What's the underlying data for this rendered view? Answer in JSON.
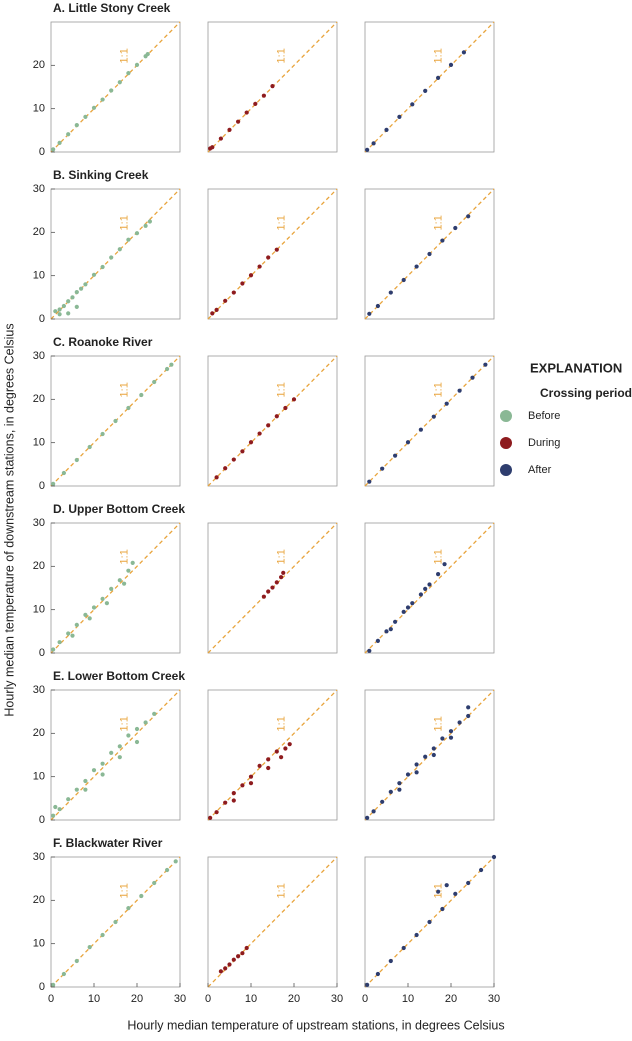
{
  "xlabel": "Hourly median temperature of upstream stations, in degrees Celsius",
  "ylabel": "Hourly median temperature of downstream stations, in degrees Celsius",
  "legend_title": "EXPLANATION",
  "legend_subtitle": "Crossing period",
  "chart_data": [
    {
      "type": "scatter",
      "title": "A. Little Stony Creek",
      "annotation": "1:1",
      "xlim": [
        0,
        30
      ],
      "ylim": [
        0,
        30
      ],
      "yticks": [
        0,
        10,
        20
      ],
      "series": [
        {
          "name": "Before",
          "color": "#8ab895",
          "x": [
            0.5,
            2,
            4,
            6,
            8,
            10,
            12,
            14,
            16,
            18,
            20,
            22,
            22.5
          ],
          "values": [
            0.6,
            2.1,
            4.1,
            6.2,
            8.1,
            10.2,
            12.1,
            14.2,
            16.1,
            18.2,
            20.1,
            22.1,
            22.6
          ]
        }
      ]
    },
    {
      "type": "scatter",
      "annotation": "1:1",
      "xlim": [
        0,
        30
      ],
      "ylim": [
        0,
        30
      ],
      "series": [
        {
          "name": "During",
          "color": "#8e1b1e",
          "x": [
            0.5,
            1,
            3,
            5,
            7,
            9,
            11,
            13,
            15
          ],
          "values": [
            0.8,
            1.1,
            3.1,
            5.1,
            7,
            9.1,
            11.1,
            13,
            15.2
          ]
        }
      ]
    },
    {
      "type": "scatter",
      "annotation": "1:1",
      "xlim": [
        0,
        30
      ],
      "ylim": [
        0,
        30
      ],
      "series": [
        {
          "name": "After",
          "color": "#2e3d6e",
          "x": [
            0.5,
            2,
            5,
            8,
            11,
            14,
            17,
            20,
            23
          ],
          "values": [
            0.5,
            2,
            5.1,
            8.1,
            11,
            14.1,
            17.1,
            20.1,
            23
          ]
        }
      ]
    },
    {
      "type": "scatter",
      "title": "B. Sinking Creek",
      "annotation": "1:1",
      "xlim": [
        0,
        30
      ],
      "ylim": [
        0,
        30
      ],
      "yticks": [
        0,
        10,
        20,
        30
      ],
      "series": [
        {
          "color": "#8ab895",
          "x": [
            1,
            2,
            3,
            4,
            5,
            6,
            7,
            8,
            10,
            12,
            14,
            16,
            18,
            20,
            22,
            23,
            2,
            4,
            6
          ],
          "values": [
            1.8,
            2.2,
            3,
            4.1,
            5,
            6.2,
            7,
            8,
            10.2,
            12,
            14.2,
            16.1,
            18.3,
            19.8,
            21.5,
            22.5,
            1.1,
            1.3,
            2.8
          ]
        }
      ]
    },
    {
      "type": "scatter",
      "annotation": "1:1",
      "xlim": [
        0,
        30
      ],
      "ylim": [
        0,
        30
      ],
      "series": [
        {
          "color": "#8e1b1e",
          "x": [
            1,
            2,
            4,
            6,
            8,
            10,
            12,
            14,
            16
          ],
          "values": [
            1.3,
            2.1,
            4.2,
            6.1,
            8.2,
            10.1,
            12.1,
            14.2,
            16
          ]
        }
      ]
    },
    {
      "type": "scatter",
      "annotation": "1:1",
      "xlim": [
        0,
        30
      ],
      "ylim": [
        0,
        30
      ],
      "series": [
        {
          "color": "#2e3d6e",
          "x": [
            1,
            3,
            6,
            9,
            12,
            15,
            18,
            21,
            24
          ],
          "values": [
            1.2,
            3,
            6.1,
            9,
            12.1,
            15,
            18.1,
            21,
            23.7
          ]
        }
      ]
    },
    {
      "type": "scatter",
      "title": "C. Roanoke River",
      "annotation": "1:1",
      "xlim": [
        0,
        30
      ],
      "ylim": [
        0,
        30
      ],
      "yticks": [
        0,
        10,
        20,
        30
      ],
      "series": [
        {
          "color": "#8ab895",
          "x": [
            0.5,
            3,
            6,
            9,
            12,
            15,
            18,
            21,
            24,
            27,
            28
          ],
          "values": [
            0.5,
            3,
            6,
            9,
            12,
            15,
            18,
            21,
            24,
            27,
            28
          ]
        }
      ]
    },
    {
      "type": "scatter",
      "annotation": "1:1",
      "xlim": [
        0,
        30
      ],
      "ylim": [
        0,
        30
      ],
      "series": [
        {
          "color": "#8e1b1e",
          "x": [
            2,
            4,
            6,
            8,
            10,
            12,
            14,
            16,
            18,
            20
          ],
          "values": [
            2,
            4.1,
            6.1,
            8,
            10.1,
            12.1,
            14,
            16.1,
            18,
            20
          ]
        }
      ]
    },
    {
      "type": "scatter",
      "annotation": "1:1",
      "xlim": [
        0,
        30
      ],
      "ylim": [
        0,
        30
      ],
      "series": [
        {
          "color": "#2e3d6e",
          "x": [
            1,
            4,
            7,
            10,
            13,
            16,
            19,
            22,
            25,
            28
          ],
          "values": [
            1,
            4,
            7,
            10.1,
            13,
            16,
            19,
            22,
            25,
            28
          ]
        }
      ]
    },
    {
      "type": "scatter",
      "title": "D. Upper Bottom Creek",
      "annotation": "1:1",
      "xlim": [
        0,
        30
      ],
      "ylim": [
        0,
        30
      ],
      "yticks": [
        0,
        10,
        20,
        30
      ],
      "series": [
        {
          "color": "#8ab895",
          "x": [
            0.5,
            2,
            4,
            6,
            8,
            10,
            12,
            14,
            16,
            18,
            19,
            5,
            9,
            13,
            17
          ],
          "values": [
            0.8,
            2.5,
            4.5,
            6.5,
            8.8,
            10.5,
            12.5,
            14.8,
            16.8,
            19,
            20.8,
            4,
            8,
            11.5,
            16
          ]
        }
      ]
    },
    {
      "type": "scatter",
      "annotation": "1:1",
      "xlim": [
        0,
        30
      ],
      "ylim": [
        0,
        30
      ],
      "series": [
        {
          "color": "#8e1b1e",
          "x": [
            13,
            14,
            15,
            16,
            17,
            17.5
          ],
          "values": [
            13,
            14.2,
            15.1,
            16.3,
            17.5,
            18.5
          ]
        }
      ]
    },
    {
      "type": "scatter",
      "annotation": "1:1",
      "xlim": [
        0,
        30
      ],
      "ylim": [
        0,
        30
      ],
      "series": [
        {
          "color": "#2e3d6e",
          "x": [
            1,
            3,
            5,
            7,
            9,
            11,
            13,
            15,
            17,
            18.5,
            6,
            10,
            14
          ],
          "values": [
            0.5,
            2.8,
            5,
            7.2,
            9.5,
            11.5,
            13.5,
            15.8,
            18.2,
            20.5,
            5.5,
            10.5,
            14.8
          ]
        }
      ]
    },
    {
      "type": "scatter",
      "title": "E. Lower Bottom Creek",
      "annotation": "1:1",
      "xlim": [
        0,
        30
      ],
      "ylim": [
        0,
        30
      ],
      "yticks": [
        0,
        10,
        20,
        30
      ],
      "series": [
        {
          "color": "#8ab895",
          "x": [
            0.5,
            2,
            4,
            6,
            8,
            10,
            12,
            14,
            16,
            18,
            20,
            22,
            24,
            8,
            12,
            16,
            20,
            1
          ],
          "values": [
            1,
            2.5,
            4.8,
            7,
            9,
            11.5,
            13,
            15.5,
            17,
            19.5,
            21,
            22.5,
            24.5,
            7,
            10.5,
            14.5,
            18,
            3
          ]
        }
      ]
    },
    {
      "type": "scatter",
      "annotation": "1:1",
      "xlim": [
        0,
        30
      ],
      "ylim": [
        0,
        30
      ],
      "series": [
        {
          "color": "#8e1b1e",
          "x": [
            0.5,
            2,
            4,
            6,
            8,
            10,
            12,
            14,
            16,
            18,
            19,
            6,
            10,
            14,
            17
          ],
          "values": [
            0.5,
            1.8,
            4,
            6.2,
            8,
            10,
            12.5,
            14,
            15.8,
            16.5,
            17.5,
            4.5,
            8.5,
            12,
            14.5
          ]
        }
      ]
    },
    {
      "type": "scatter",
      "annotation": "1:1",
      "xlim": [
        0,
        30
      ],
      "ylim": [
        0,
        30
      ],
      "series": [
        {
          "color": "#2e3d6e",
          "x": [
            0.5,
            2,
            4,
            6,
            8,
            10,
            12,
            14,
            16,
            18,
            20,
            22,
            24,
            24,
            8,
            12,
            16,
            20
          ],
          "values": [
            0.5,
            2,
            4.2,
            6.5,
            8.5,
            10.5,
            12.8,
            14.6,
            16.5,
            18.8,
            20.5,
            22.5,
            24,
            26,
            7,
            11,
            15,
            19
          ]
        }
      ]
    },
    {
      "type": "scatter",
      "title": "F. Blackwater River",
      "annotation": "1:1",
      "xlim": [
        0,
        30
      ],
      "ylim": [
        0,
        30
      ],
      "yticks": [
        0,
        10,
        20,
        30
      ],
      "xticks": [
        0,
        10,
        20,
        30
      ],
      "series": [
        {
          "color": "#8ab895",
          "x": [
            0.5,
            3,
            6,
            9,
            12,
            15,
            18,
            21,
            24,
            27,
            29
          ],
          "values": [
            0.5,
            3,
            6,
            9.2,
            12,
            15,
            18.2,
            21,
            24,
            27,
            29
          ]
        }
      ]
    },
    {
      "type": "scatter",
      "annotation": "1:1",
      "xlim": [
        0,
        30
      ],
      "ylim": [
        0,
        30
      ],
      "xticks": [
        0,
        10,
        20,
        30
      ],
      "series": [
        {
          "color": "#8e1b1e",
          "x": [
            3,
            4,
            5,
            6,
            7,
            8,
            9
          ],
          "values": [
            3.6,
            4.3,
            5.2,
            6.3,
            7.1,
            7.8,
            9
          ]
        }
      ]
    },
    {
      "type": "scatter",
      "annotation": "1:1",
      "xlim": [
        0,
        30
      ],
      "ylim": [
        0,
        30
      ],
      "xticks": [
        0,
        10,
        20,
        30
      ],
      "series": [
        {
          "color": "#2e3d6e",
          "x": [
            0.5,
            3,
            6,
            9,
            12,
            15,
            18,
            21,
            24,
            27,
            30,
            17,
            19
          ],
          "values": [
            0.5,
            3,
            6,
            9,
            12,
            15,
            18,
            21.5,
            24,
            27,
            30,
            22,
            23.5
          ]
        }
      ]
    }
  ]
}
